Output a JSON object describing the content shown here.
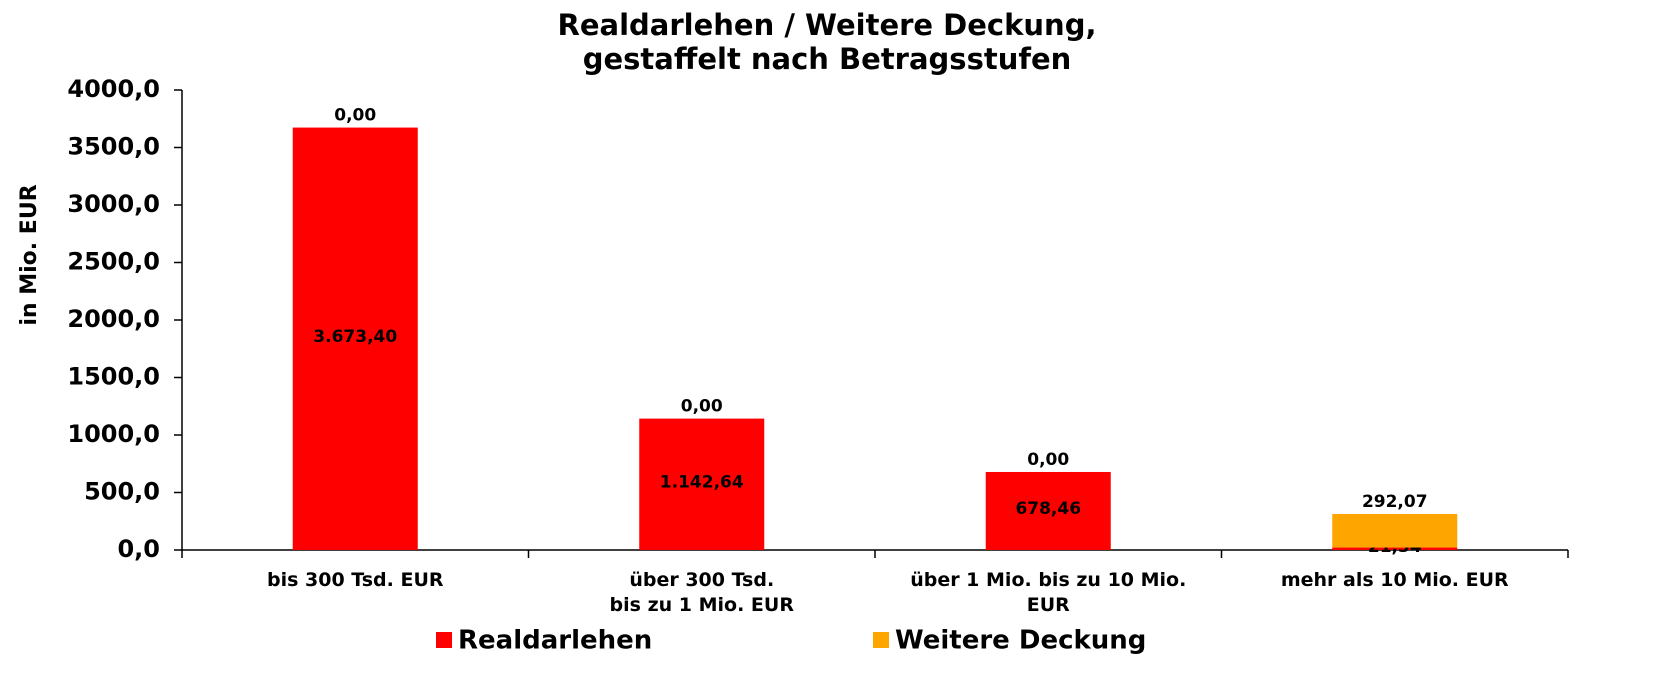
{
  "chart_data": {
    "type": "stacked_bar",
    "title": "Realdarlehen / Weitere Deckung,\ngestaffelt nach Betragsstufen",
    "y_label": "in Mio. EUR",
    "categories": [
      "bis 300 Tsd. EUR",
      "über 300 Tsd.\nbis zu 1 Mio. EUR",
      "über 1 Mio. bis zu 10 Mio.\nEUR",
      "mehr als 10 Mio. EUR"
    ],
    "series": [
      {
        "name": "Realdarlehen",
        "color": "#ff0000",
        "values": [
          3673.4,
          1142.64,
          678.46,
          21.34
        ],
        "value_labels": [
          "3.673,40",
          "1.142,64",
          "678,46",
          "21,34"
        ]
      },
      {
        "name": "Weitere Deckung",
        "color": "#ffa500",
        "values": [
          0,
          0,
          0,
          292.07
        ],
        "value_labels": [
          "0,00",
          "0,00",
          "0,00",
          "292,07"
        ]
      }
    ],
    "ylim": [
      0,
      4000
    ],
    "yticks": [
      {
        "value": 0,
        "label": "0,0"
      },
      {
        "value": 500,
        "label": "500,0"
      },
      {
        "value": 1000,
        "label": "1000,0"
      },
      {
        "value": 1500,
        "label": "1500,0"
      },
      {
        "value": 2000,
        "label": "2000,0"
      },
      {
        "value": 2500,
        "label": "2500,0"
      },
      {
        "value": 3000,
        "label": "3000,0"
      },
      {
        "value": 3500,
        "label": "3500,0"
      },
      {
        "value": 4000,
        "label": "4000,0"
      }
    ],
    "legend": "bottom"
  }
}
